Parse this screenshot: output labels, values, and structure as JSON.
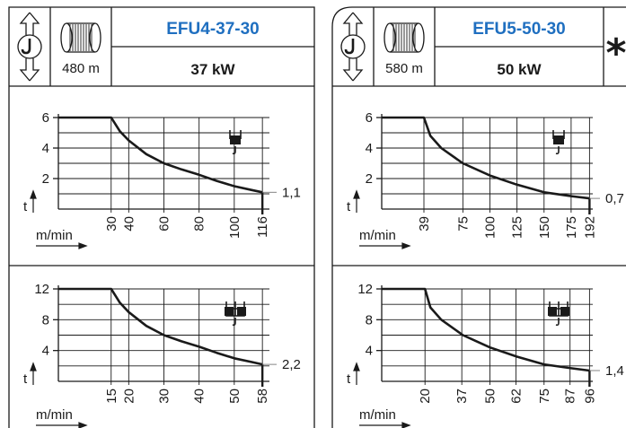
{
  "panels": [
    {
      "model": "EFU4-37-30",
      "power": "37 kW",
      "rope_length": "480 m",
      "marked": false,
      "speed_label": "m/min",
      "load_label": "t",
      "chart_data": [
        {
          "type": "line",
          "title": "",
          "hook": "single",
          "xlabel": "m/min",
          "ylabel": "t",
          "x_ticks": [
            "30",
            "40",
            "60",
            "80",
            "100",
            "116"
          ],
          "y_ticks": [
            "2",
            "4",
            "6"
          ],
          "xlim": [
            0,
            120
          ],
          "ylim": [
            0,
            6
          ],
          "end_label": "1,1",
          "x": [
            0,
            30,
            35,
            40,
            50,
            60,
            70,
            80,
            90,
            100,
            110,
            116
          ],
          "y": [
            6,
            6,
            5.1,
            4.5,
            3.6,
            3.0,
            2.6,
            2.25,
            1.85,
            1.5,
            1.25,
            1.1
          ]
        },
        {
          "type": "line",
          "title": "",
          "hook": "double",
          "xlabel": "m/min",
          "ylabel": "t",
          "x_ticks": [
            "15",
            "20",
            "30",
            "40",
            "50",
            "58"
          ],
          "y_ticks": [
            "4",
            "8",
            "12"
          ],
          "xlim": [
            0,
            60
          ],
          "ylim": [
            0,
            12
          ],
          "end_label": "2,2",
          "x": [
            0,
            15,
            17.5,
            20,
            25,
            30,
            35,
            40,
            45,
            50,
            55,
            58
          ],
          "y": [
            12,
            12,
            10.2,
            9.0,
            7.2,
            6.0,
            5.2,
            4.5,
            3.7,
            3.0,
            2.5,
            2.2
          ]
        }
      ]
    },
    {
      "model": "EFU5-50-30",
      "power": "50 kW",
      "rope_length": "580 m",
      "marked": true,
      "marker": "*",
      "speed_label": "m/min",
      "load_label": "t",
      "chart_data": [
        {
          "type": "line",
          "title": "",
          "hook": "single",
          "xlabel": "m/min",
          "ylabel": "t",
          "x_ticks": [
            "39",
            "75",
            "100",
            "125",
            "150",
            "175",
            "192"
          ],
          "y_ticks": [
            "2",
            "4",
            "6"
          ],
          "xlim": [
            0,
            195
          ],
          "ylim": [
            0,
            6
          ],
          "end_label": "0,7",
          "x": [
            0,
            39,
            45,
            55,
            75,
            100,
            125,
            150,
            175,
            192
          ],
          "y": [
            6,
            6,
            4.8,
            4.0,
            3.0,
            2.2,
            1.6,
            1.1,
            0.85,
            0.7
          ]
        },
        {
          "type": "line",
          "title": "",
          "hook": "double",
          "xlabel": "m/min",
          "ylabel": "t",
          "x_ticks": [
            "20",
            "37",
            "50",
            "62",
            "75",
            "87",
            "96"
          ],
          "y_ticks": [
            "4",
            "8",
            "12"
          ],
          "xlim": [
            0,
            97.5
          ],
          "ylim": [
            0,
            12
          ],
          "end_label": "1,4",
          "x": [
            0,
            20,
            22.5,
            27.5,
            37.5,
            50,
            62.5,
            75,
            87.5,
            96
          ],
          "y": [
            12,
            12,
            9.6,
            8.0,
            6.0,
            4.4,
            3.2,
            2.2,
            1.7,
            1.4
          ]
        }
      ]
    }
  ]
}
